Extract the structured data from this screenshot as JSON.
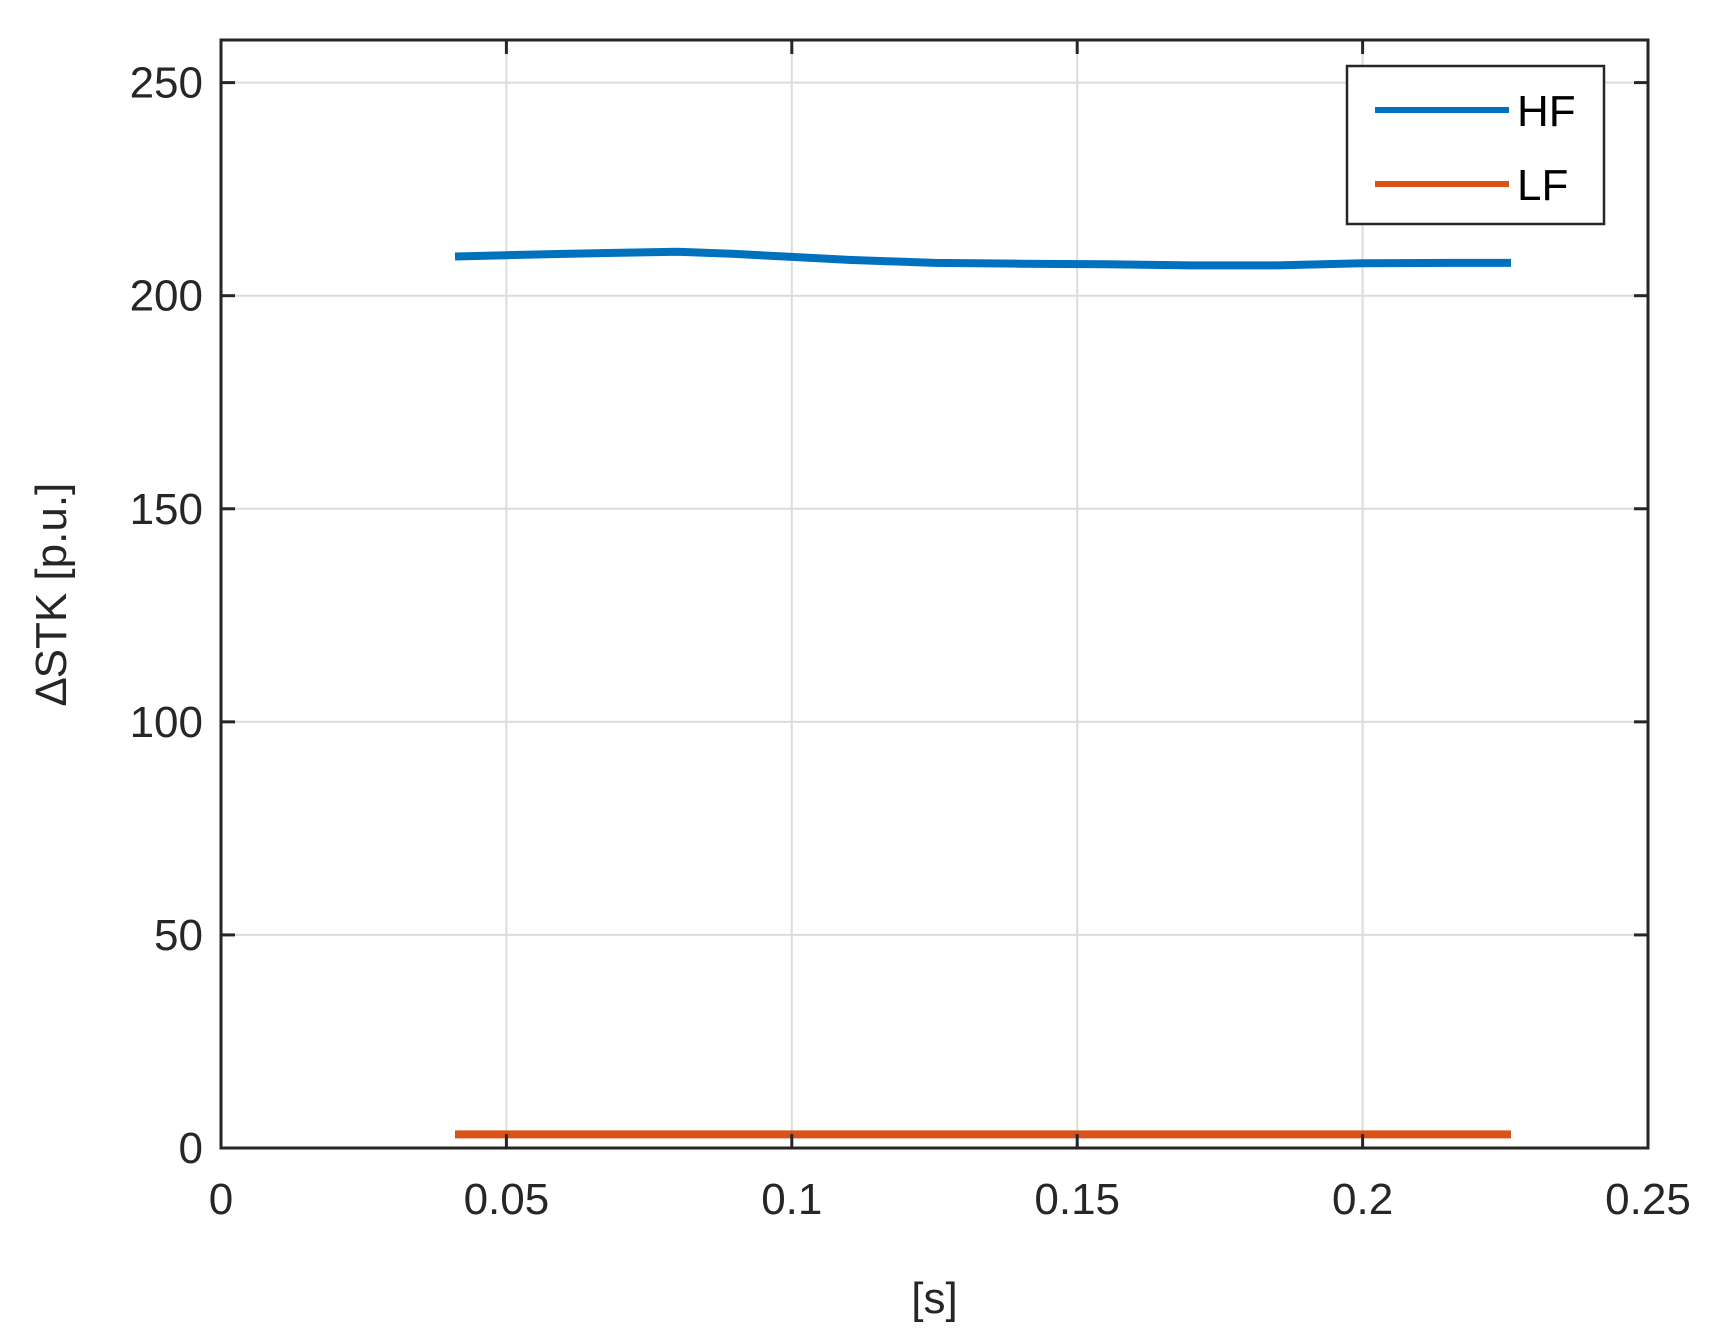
{
  "chart_data": {
    "type": "line",
    "title": "",
    "xlabel": "[s]",
    "ylabel": "∆STK [p.u.]",
    "xlim": [
      0,
      0.25
    ],
    "ylim": [
      0,
      260
    ],
    "x_ticks": [
      0,
      0.05,
      0.1,
      0.15,
      0.2,
      0.25
    ],
    "x_tick_labels": [
      "0",
      "0.05",
      "0.1",
      "0.15",
      "0.2",
      "0.25"
    ],
    "y_ticks": [
      0,
      50,
      100,
      150,
      200,
      250
    ],
    "y_tick_labels": [
      "0",
      "50",
      "100",
      "150",
      "200",
      "250"
    ],
    "grid": true,
    "legend_position": "top-right",
    "series": [
      {
        "name": "HF",
        "color": "#0072BD",
        "x": [
          0.041,
          0.05,
          0.06,
          0.07,
          0.08,
          0.09,
          0.1,
          0.11,
          0.125,
          0.14,
          0.155,
          0.17,
          0.185,
          0.2,
          0.215,
          0.226
        ],
        "y": [
          209.2,
          209.5,
          209.8,
          210.1,
          210.3,
          209.8,
          209.1,
          208.4,
          207.7,
          207.5,
          207.4,
          207.1,
          207.1,
          207.6,
          207.7,
          207.7
        ]
      },
      {
        "name": "LF",
        "color": "#D95319",
        "x": [
          0.041,
          0.226
        ],
        "y": [
          3.2,
          3.2
        ]
      }
    ]
  }
}
